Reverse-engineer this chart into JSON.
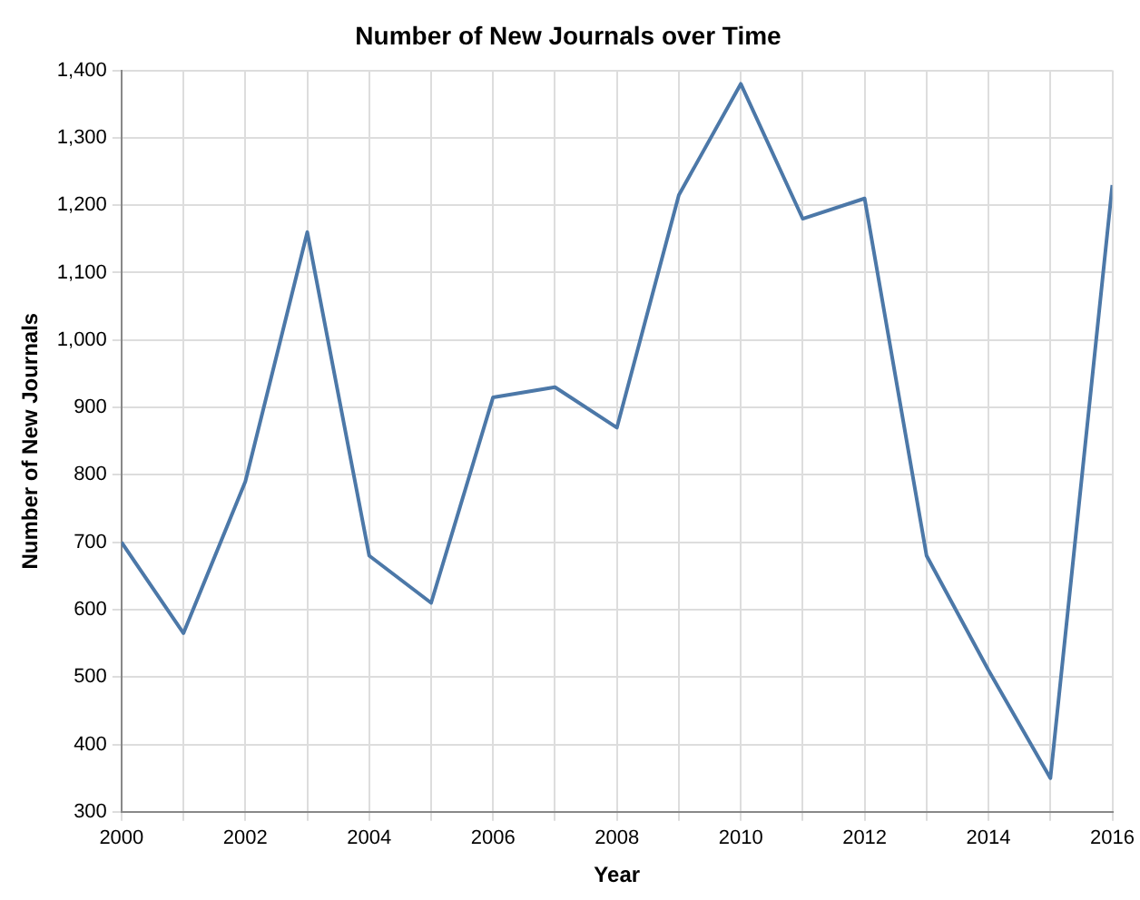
{
  "chart_data": {
    "type": "line",
    "title": "Number of New Journals over Time",
    "xlabel": "Year",
    "ylabel": "Number of New Journals",
    "x": [
      2000,
      2001,
      2002,
      2003,
      2004,
      2005,
      2006,
      2007,
      2008,
      2009,
      2010,
      2011,
      2012,
      2013,
      2014,
      2015,
      2016
    ],
    "series": [
      {
        "color": "#4c78a8",
        "values": [
          700,
          565,
          790,
          1160,
          680,
          610,
          915,
          930,
          870,
          1215,
          1380,
          1180,
          1210,
          680,
          510,
          350,
          1230
        ]
      }
    ],
    "xlim": [
      2000,
      2016
    ],
    "xticks": [
      2000,
      {
        "value": 2001,
        "label": null
      },
      2002,
      {
        "value": 2003,
        "label": null
      },
      2004,
      {
        "value": 2005,
        "label": null
      },
      2006,
      {
        "value": 2007,
        "label": null
      },
      2008,
      {
        "value": 2009,
        "label": null
      },
      2010,
      {
        "value": 2011,
        "label": null
      },
      2012,
      {
        "value": 2013,
        "label": null
      },
      2014,
      {
        "value": 2015,
        "label": null
      },
      2016
    ],
    "ylim": [
      300,
      1400
    ],
    "yticks": [
      {
        "value": 300,
        "label": "300"
      },
      {
        "value": 400,
        "label": "400"
      },
      {
        "value": 500,
        "label": "500"
      },
      {
        "value": 600,
        "label": "600"
      },
      {
        "value": 700,
        "label": "700"
      },
      {
        "value": 800,
        "label": "800"
      },
      {
        "value": 900,
        "label": "900"
      },
      {
        "value": 1000,
        "label": "1,000"
      },
      {
        "value": 1100,
        "label": "1,100"
      },
      {
        "value": 1200,
        "label": "1,200"
      },
      {
        "value": 1300,
        "label": "1,300"
      },
      {
        "value": 1400,
        "label": "1,400"
      }
    ],
    "grid": true,
    "marker": "none",
    "line_style": "solid",
    "legend": false
  }
}
